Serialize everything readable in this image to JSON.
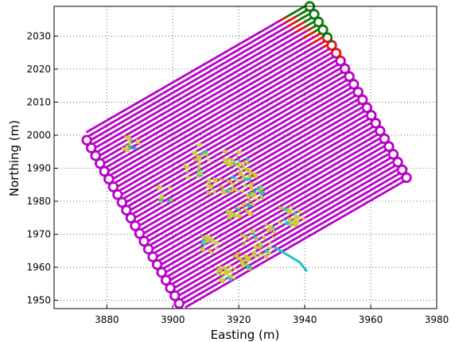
{
  "chart_data": {
    "type": "line",
    "xlabel": "Easting (m)",
    "ylabel": "Northing (m)",
    "xlim": [
      3864,
      3980
    ],
    "ylim": [
      1947.5,
      2039
    ],
    "xticks": [
      3880,
      3900,
      3920,
      3940,
      3960,
      3980
    ],
    "yticks": [
      1950,
      1960,
      1970,
      1980,
      1990,
      2000,
      2010,
      2020,
      2030
    ],
    "grid": true,
    "legend": "none",
    "colors": {
      "blue": "#0a14e6",
      "green": "#0a7a0a",
      "magenta": "#b800c8",
      "red": "#e81010",
      "yellow": "#c8cc3a",
      "cyan": "#20c4c4"
    },
    "survey": {
      "corners": {
        "west": [
          3874,
          2001
        ],
        "north": [
          3940,
          2039
        ],
        "east": [
          3971,
          1984
        ],
        "south": [
          3904,
          1948
        ]
      },
      "line_count": 46,
      "loop_radius": 1.3
    },
    "zones": [
      {
        "color": "blue",
        "min_proj": 73
      },
      {
        "color": "green",
        "min_proj": 62
      },
      {
        "color": "red",
        "min_proj": 59
      },
      {
        "color": "magenta",
        "min_proj": -100
      }
    ],
    "side_track": {
      "color": "cyan",
      "points": [
        [
          3931,
          1966
        ],
        [
          3936,
          1963
        ],
        [
          3938.5,
          1961.5
        ],
        [
          3940.5,
          1959
        ]
      ]
    },
    "yellow_patch_centers": [
      [
        3918,
        1993
      ],
      [
        3921,
        1991
      ],
      [
        3923,
        1987
      ],
      [
        3919,
        1985
      ],
      [
        3925,
        1983
      ],
      [
        3922,
        1978
      ],
      [
        3918,
        1975
      ],
      [
        3923,
        1969
      ],
      [
        3927,
        1965
      ],
      [
        3921,
        1962
      ],
      [
        3913,
        1985
      ],
      [
        3906,
        1989
      ],
      [
        3934,
        1976
      ],
      [
        3911,
        1967
      ],
      [
        3929,
        1971
      ],
      [
        3898,
        1982
      ],
      [
        3909,
        1995
      ],
      [
        3887,
        1997
      ],
      [
        3937,
        1975
      ],
      [
        3916,
        1958
      ]
    ]
  }
}
